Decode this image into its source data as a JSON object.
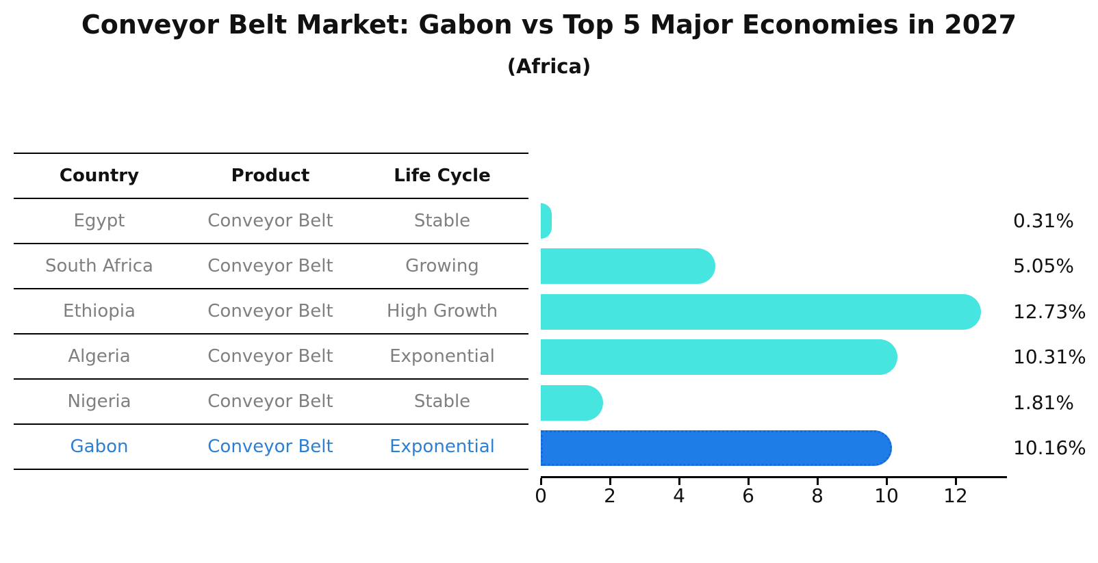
{
  "title": "Conveyor Belt Market: Gabon vs Top 5 Major Economies in 2027",
  "subtitle": "(Africa)",
  "table": {
    "headers": [
      "Country",
      "Product",
      "Life Cycle"
    ],
    "rows": [
      {
        "country": "Egypt",
        "product": "Conveyor Belt",
        "life_cycle": "Stable",
        "highlight": false
      },
      {
        "country": "South Africa",
        "product": "Conveyor Belt",
        "life_cycle": "Growing",
        "highlight": false
      },
      {
        "country": "Ethiopia",
        "product": "Conveyor Belt",
        "life_cycle": "High Growth",
        "highlight": false
      },
      {
        "country": "Algeria",
        "product": "Conveyor Belt",
        "life_cycle": "Exponential",
        "highlight": false
      },
      {
        "country": "Nigeria",
        "product": "Conveyor Belt",
        "life_cycle": "Stable",
        "highlight": false
      },
      {
        "country": "Gabon",
        "product": "Conveyor Belt",
        "life_cycle": "Exponential",
        "highlight": true
      }
    ]
  },
  "chart_data": {
    "type": "bar",
    "orientation": "horizontal",
    "title": "Conveyor Belt Market: Gabon vs Top 5 Major Economies in 2027",
    "subtitle": "(Africa)",
    "categories": [
      "Egypt",
      "South Africa",
      "Ethiopia",
      "Algeria",
      "Nigeria",
      "Gabon"
    ],
    "values": [
      0.31,
      5.05,
      12.73,
      10.31,
      1.81,
      10.16
    ],
    "value_labels": [
      "0.31%",
      "5.05%",
      "12.73%",
      "10.31%",
      "1.81%",
      "10.16%"
    ],
    "highlight_category": "Gabon",
    "xlabel": "",
    "ylabel": "",
    "xlim": [
      0,
      13.5
    ],
    "xticks": [
      0,
      2,
      4,
      6,
      8,
      10,
      12
    ],
    "grid": false,
    "legend": "none",
    "colors": {
      "bar": "#46e5e0",
      "highlight_bar": "#1f7de8",
      "highlight_border": "#1668d8",
      "highlight_text": "#2b7fd4",
      "row_text": "#7f7f7f",
      "axis": "#000000"
    }
  }
}
